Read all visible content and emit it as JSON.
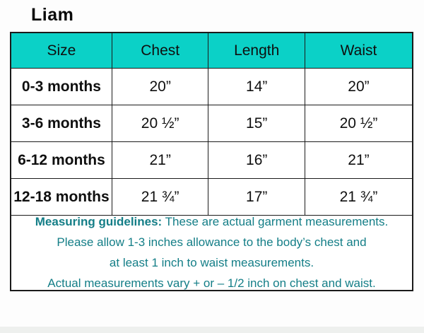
{
  "page": {
    "title": "Liam"
  },
  "table": {
    "headers": [
      "Size",
      "Chest",
      "Length",
      "Waist"
    ],
    "rows": [
      {
        "size": "0-3 months",
        "chest": "20”",
        "length": "14”",
        "waist": "20”"
      },
      {
        "size": "3-6 months",
        "chest": "20 ½”",
        "length": "15”",
        "waist": "20 ½”"
      },
      {
        "size": "6-12 months",
        "chest": "21”",
        "length": "16”",
        "waist": "21”"
      },
      {
        "size": "12-18 months",
        "chest": "21 ¾”",
        "length": "17”",
        "waist": "21 ¾”"
      }
    ]
  },
  "guidelines": {
    "label": "Measuring guidelines:",
    "line1_rest": " These are actual garment measurements.",
    "line2": "Please allow 1-3 inches allowance to the body’s chest and",
    "line3": "at least 1 inch to waist measurements.",
    "line4": "Actual measurements vary + or – 1/2 inch on chest and waist."
  },
  "colors": {
    "header_bg": "#0bd1c7",
    "guideline_text": "#147e87",
    "border": "#1b1b1b"
  }
}
